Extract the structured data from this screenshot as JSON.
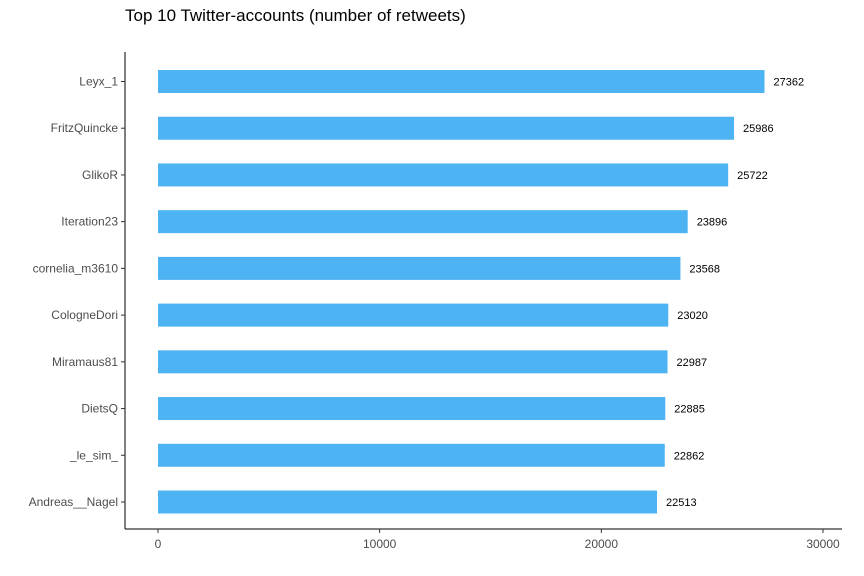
{
  "chart_data": {
    "type": "bar",
    "orientation": "horizontal",
    "title": "Top 10 Twitter-accounts (number of retweets)",
    "xlabel": "",
    "ylabel": "",
    "categories": [
      "Leyx_1",
      "FritzQuincke",
      "GlikoR",
      "Iteration23",
      "cornelia_m3610",
      "CologneDori",
      "Miramaus81",
      "DietsQ",
      "_le_sim_",
      "Andreas__Nagel"
    ],
    "values": [
      27362,
      25986,
      25722,
      23896,
      23568,
      23020,
      22987,
      22885,
      22862,
      22513
    ],
    "data_labels": [
      "27362",
      "25986",
      "25722",
      "23896",
      "23568",
      "23020",
      "22987",
      "22885",
      "22862",
      "22513"
    ],
    "xlim": [
      0,
      30000
    ],
    "x_ticks": [
      0,
      10000,
      20000,
      30000
    ],
    "x_tick_labels": [
      "0",
      "10000",
      "20000",
      "30000"
    ],
    "grid": false,
    "bar_color": "#4db3f2"
  }
}
